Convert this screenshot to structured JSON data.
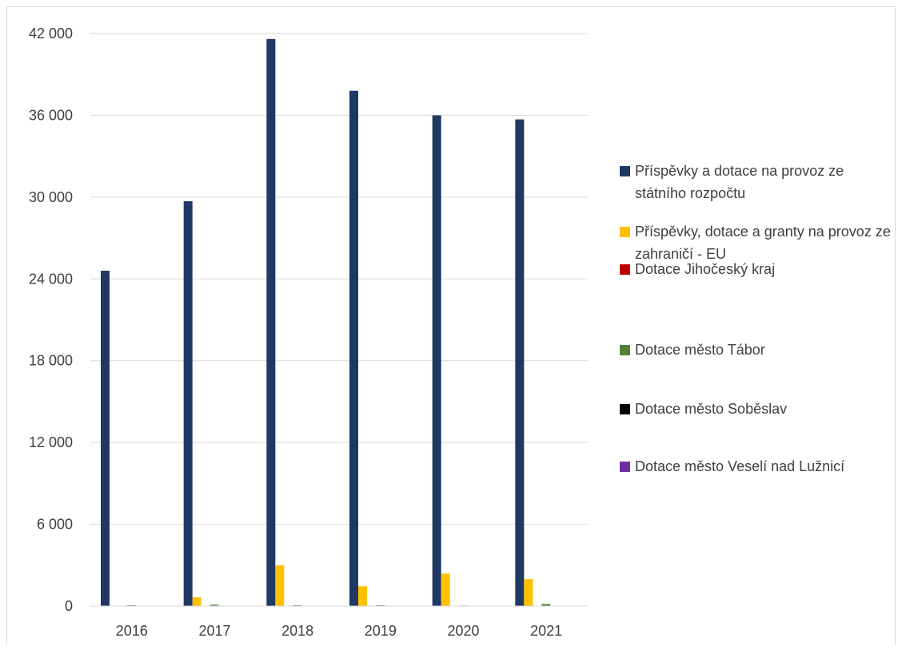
{
  "chart_data": {
    "type": "bar",
    "categories": [
      "2016",
      "2017",
      "2018",
      "2019",
      "2020",
      "2021"
    ],
    "ylim": [
      0,
      42000
    ],
    "yticks": [
      0,
      6000,
      12000,
      18000,
      24000,
      30000,
      36000,
      42000
    ],
    "ytick_labels": [
      "0",
      "6 000",
      "12 000",
      "18 000",
      "24 000",
      "30 000",
      "36 000",
      "42 000"
    ],
    "grid": true,
    "legend_position": "right",
    "title": "",
    "xlabel": "",
    "ylabel": "",
    "series": [
      {
        "name": "Příspěvky a dotace na provoz ze státního rozpočtu",
        "color": "#1f3864",
        "values": [
          24600,
          29700,
          41600,
          37800,
          36000,
          35700
        ]
      },
      {
        "name": "Příspěvky, dotace a granty na provoz ze zahraničí - EU",
        "color": "#ffc000",
        "values": [
          0,
          650,
          3000,
          1450,
          2380,
          1980
        ]
      },
      {
        "name": "Dotace Jihočeský kraj",
        "color": "#c00000",
        "values": [
          0,
          0,
          0,
          0,
          0,
          0
        ]
      },
      {
        "name": "Dotace město Tábor",
        "color": "#548235",
        "values": [
          60,
          100,
          60,
          60,
          40,
          150
        ]
      },
      {
        "name": "Dotace město Soběslav",
        "color": "#000000",
        "values": [
          0,
          0,
          0,
          0,
          0,
          0
        ]
      },
      {
        "name": "Dotace město Veselí nad Lužnicí",
        "color": "#7030a0",
        "values": [
          0,
          0,
          0,
          0,
          0,
          0
        ]
      }
    ]
  }
}
